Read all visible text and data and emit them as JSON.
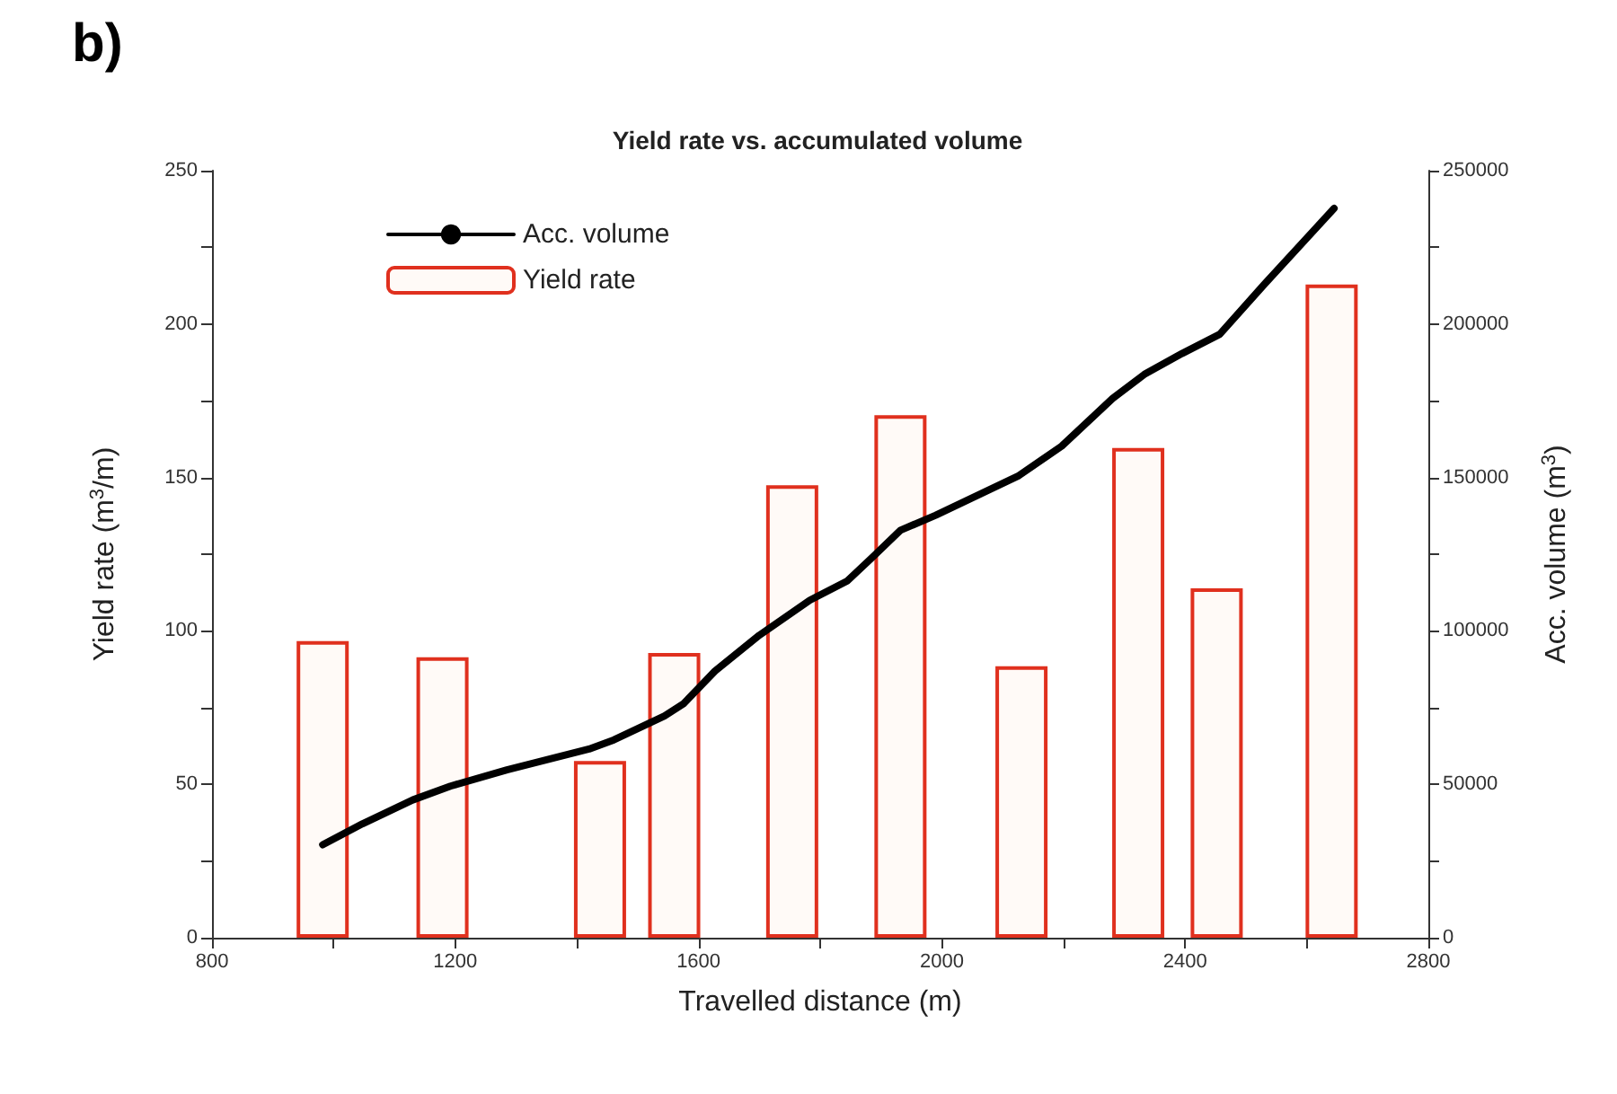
{
  "chart_data": {
    "type": "bar",
    "title": "Yield rate vs. accumulated volume",
    "xlabel": "Travelled distance (m)",
    "ylabel": "Yield rate (m$^{3}$/m)",
    "y2label": "Acc. volume (m$^{3}$)",
    "annotations": [
      "b)"
    ],
    "xlim": [
      800,
      2800
    ],
    "xticks": [
      800,
      {
        "value": 1000,
        "label": null
      },
      1200,
      {
        "value": 1400,
        "label": null
      },
      1600,
      {
        "value": 1800,
        "label": null
      },
      2000,
      {
        "value": 2200,
        "label": null
      },
      2400,
      {
        "value": 2600,
        "label": null
      },
      2800
    ],
    "ylim": [
      0,
      250
    ],
    "yticks": [
      0,
      {
        "value": 25,
        "label": null
      },
      50,
      {
        "value": 75,
        "label": null
      },
      100,
      {
        "value": 125,
        "label": null
      },
      150,
      {
        "value": 175,
        "label": null
      },
      200,
      {
        "value": 225,
        "label": null
      },
      250
    ],
    "y2lim": [
      0,
      250000
    ],
    "y2ticks": [
      0,
      {
        "value": 25000,
        "label": null
      },
      50000,
      {
        "value": 75000,
        "label": null
      },
      100000,
      {
        "value": 125000,
        "label": null
      },
      150000,
      {
        "value": 175000,
        "label": null
      },
      200000,
      {
        "value": 225000,
        "label": null
      },
      250000
    ],
    "grid": false,
    "legend": "top left",
    "marker": "none",
    "series": [
      {
        "name": "Acc. volume",
        "type": "line",
        "axis": "y2",
        "color": "#000000",
        "line_style": "solid",
        "x": [
          982,
          1047,
          1130,
          1192,
          1285,
          1420,
          1461,
          1544,
          1575,
          1627,
          1700,
          1783,
          1844,
          1886,
          1932,
          1990,
          2042,
          2125,
          2197,
          2281,
          2333,
          2395,
          2457,
          2530,
          2645
        ],
        "values": [
          30300,
          37100,
          44900,
          49400,
          54700,
          61500,
          64500,
          72300,
          76200,
          86900,
          98600,
          110000,
          116200,
          124000,
          132800,
          137700,
          142600,
          150400,
          160200,
          175800,
          183600,
          190400,
          196700,
          212900,
          237700
        ]
      },
      {
        "name": "Yield rate",
        "color": "#e0301e",
        "x": [
          982,
          1179,
          1438,
          1560,
          1754,
          1932,
          2131,
          2323,
          2452,
          2641
        ],
        "values": [
          96.7,
          91.4,
          57.6,
          92.8,
          147.5,
          170.3,
          88.5,
          159.6,
          113.9,
          212.9
        ]
      }
    ]
  }
}
